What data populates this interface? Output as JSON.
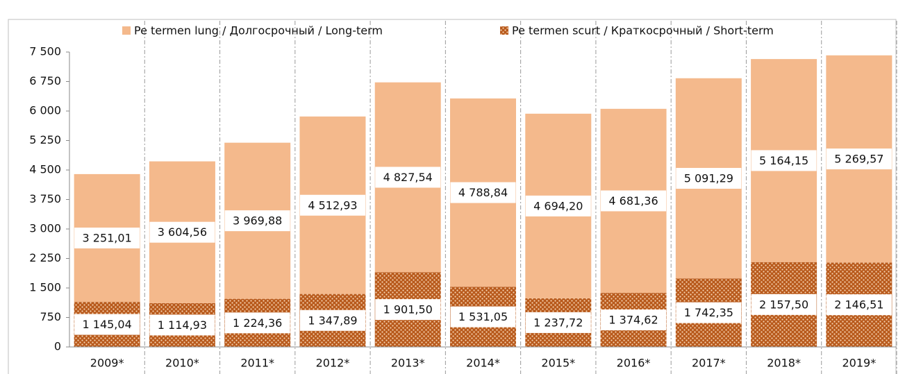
{
  "chart_data": {
    "type": "stacked_bar",
    "categories": [
      "2009*",
      "2010*",
      "2011*",
      "2012*",
      "2013*",
      "2014*",
      "2015*",
      "2016*",
      "2017*",
      "2018*",
      "2019*"
    ],
    "series": [
      {
        "name": "Pe termen scurt / Краткосрочный / Short-term",
        "color": "#b85a1c",
        "values": [
          1145.04,
          1114.93,
          1224.36,
          1347.89,
          1901.5,
          1531.05,
          1237.72,
          1374.62,
          1742.35,
          2157.5,
          2146.51
        ],
        "value_labels": [
          "1 145,04",
          "1 114,93",
          "1 224,36",
          "1 347,89",
          "1 901,50",
          "1 531,05",
          "1 237,72",
          "1 374,62",
          "1 742,35",
          "2 157,50",
          "2 146,51"
        ]
      },
      {
        "name": "Pe termen lung / Долгосрочный / Long-term",
        "color": "#f4b98c",
        "values": [
          3251.01,
          3604.56,
          3969.88,
          4512.93,
          4827.54,
          4788.84,
          4694.2,
          4681.36,
          5091.29,
          5164.15,
          5269.57
        ],
        "value_labels": [
          "3 251,01",
          "3 604,56",
          "3 969,88",
          "4 512,93",
          "4 827,54",
          "4 788,84",
          "4 694,20",
          "4 681,36",
          "5 091,29",
          "5 164,15",
          "5 269,57"
        ]
      }
    ],
    "ylim": [
      0,
      7500
    ],
    "yticks": [
      0,
      750,
      {
        "value": 1500,
        "label": "1 500"
      },
      {
        "value": 2250,
        "label": "2 250"
      },
      {
        "value": 3000,
        "label": "3 000"
      },
      {
        "value": 3750,
        "label": "3 750"
      },
      {
        "value": 4500,
        "label": "4 500"
      },
      {
        "value": 5250,
        "label": "5 250"
      },
      {
        "value": 6000,
        "label": "6 000"
      },
      {
        "value": 6750,
        "label": "6 750"
      },
      {
        "value": 7500,
        "label": "7 500"
      }
    ],
    "legend": "top"
  }
}
